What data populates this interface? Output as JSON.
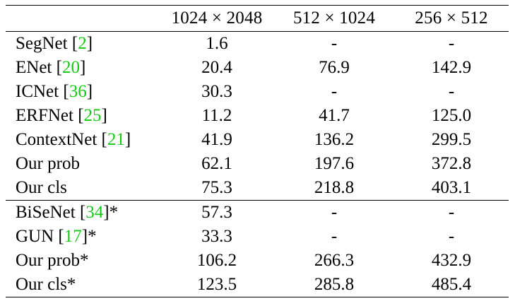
{
  "table": {
    "headers": [
      "",
      "1024 × 2048",
      "512 × 1024",
      "256 × 512"
    ],
    "groups": [
      [
        {
          "method": "SegNet",
          "ref": "2",
          "suffix": "",
          "values": [
            "1.6",
            "-",
            "-"
          ]
        },
        {
          "method": "ENet",
          "ref": "20",
          "suffix": "",
          "values": [
            "20.4",
            "76.9",
            "142.9"
          ]
        },
        {
          "method": "ICNet",
          "ref": "36",
          "suffix": "",
          "values": [
            "30.3",
            "-",
            "-"
          ]
        },
        {
          "method": "ERFNet",
          "ref": "25",
          "suffix": "",
          "values": [
            "11.2",
            "41.7",
            "125.0"
          ]
        },
        {
          "method": "ContextNet",
          "ref": "21",
          "suffix": "",
          "values": [
            "41.9",
            "136.2",
            "299.5"
          ]
        },
        {
          "method": "Our prob",
          "ref": "",
          "suffix": "",
          "values": [
            "62.1",
            "197.6",
            "372.8"
          ]
        },
        {
          "method": "Our cls",
          "ref": "",
          "suffix": "",
          "values": [
            "75.3",
            "218.8",
            "403.1"
          ]
        }
      ],
      [
        {
          "method": "BiSeNet",
          "ref": "34",
          "suffix": "*",
          "values": [
            "57.3",
            "-",
            "-"
          ]
        },
        {
          "method": "GUN",
          "ref": "17",
          "suffix": "*",
          "values": [
            "33.3",
            "-",
            "-"
          ]
        },
        {
          "method": "Our prob*",
          "ref": "",
          "suffix": "",
          "values": [
            "106.2",
            "266.3",
            "432.9"
          ]
        },
        {
          "method": "Our cls*",
          "ref": "",
          "suffix": "",
          "values": [
            "123.5",
            "285.8",
            "485.4"
          ]
        }
      ]
    ],
    "colors": {
      "citation": "#14c914",
      "rule": "#000000"
    }
  }
}
